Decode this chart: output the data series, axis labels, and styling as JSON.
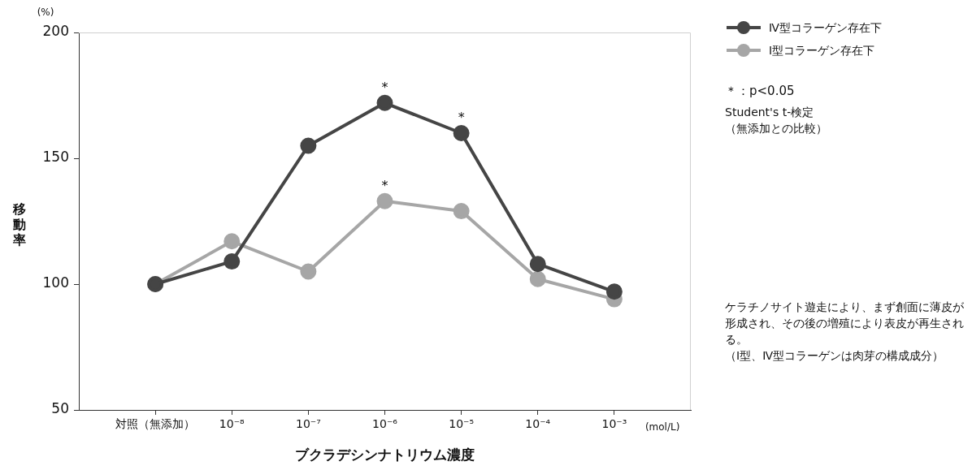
{
  "chart_data": {
    "type": "line",
    "xlabel": "ブクラデシンナトリウム濃度",
    "ylabel": "移動率",
    "categories": [
      "対照（無添加）",
      "10⁻⁸",
      "10⁻⁷",
      "10⁻⁶",
      "10⁻⁵",
      "10⁻⁴",
      "10⁻³"
    ],
    "series": [
      {
        "name": "Ⅳ型コラーゲン存在下",
        "color": "#454545",
        "values": [
          100,
          109,
          155,
          172,
          160,
          108,
          97
        ]
      },
      {
        "name": "Ⅰ型コラーゲン存在下",
        "color": "#a6a6a6",
        "values": [
          100,
          117,
          105,
          133,
          129,
          102,
          94
        ]
      }
    ],
    "ylim": [
      50,
      200
    ],
    "yticks": [
      50,
      100,
      150,
      200
    ],
    "marker": "circle",
    "line_style": "solid",
    "legend": "right",
    "annotations": [
      "(%)",
      "(mol/L)",
      {
        "text": "*",
        "x": "10⁻⁶",
        "y": 172
      },
      {
        "text": "*",
        "x": "10⁻⁵",
        "y": 160
      },
      {
        "text": "*",
        "x": "10⁻⁶",
        "y": 133
      },
      "＊：p<0.05",
      "Student's t-検定",
      "（無添加との比較）",
      "ケラチノサイト遊走により、まず創面に薄皮が形成され、その後の増殖により表皮が再生される。",
      "（Ⅰ型、Ⅳ型コラーゲンは肉芽の構成成分）"
    ]
  }
}
